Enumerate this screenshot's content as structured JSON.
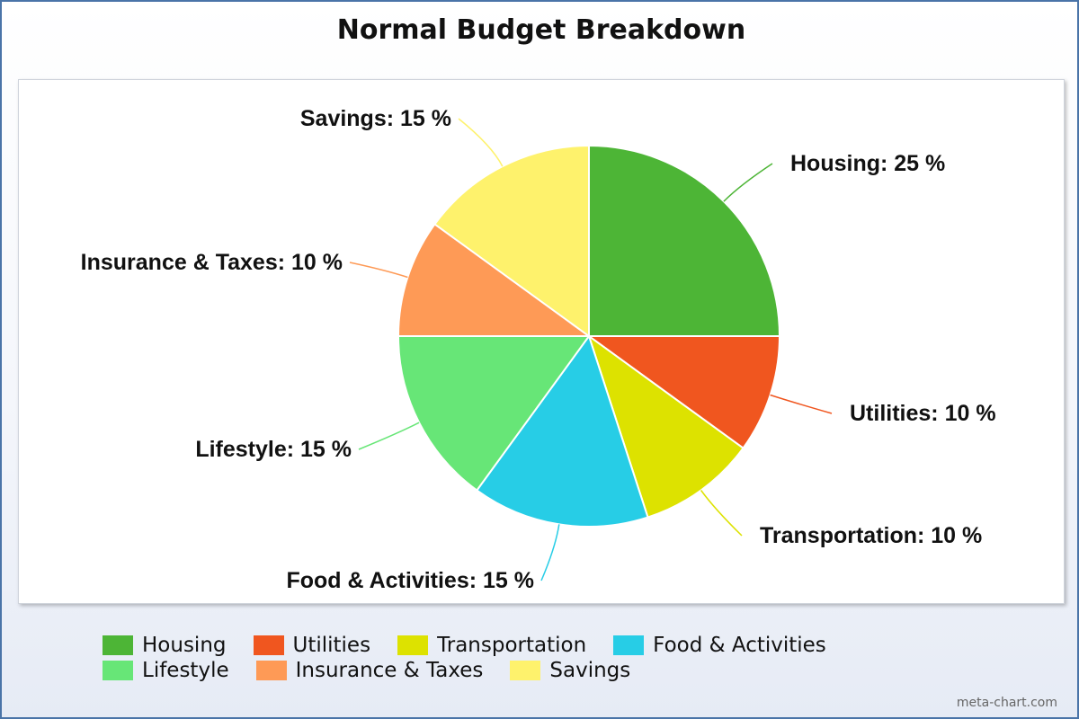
{
  "chart_data": {
    "type": "pie",
    "title": "Normal Budget Breakdown",
    "slices": [
      {
        "name": "Housing",
        "value": 25,
        "label": "Housing: 25 %",
        "color": "#4db536"
      },
      {
        "name": "Utilities",
        "value": 10,
        "label": "Utilities: 10 %",
        "color": "#f0561f"
      },
      {
        "name": "Transportation",
        "value": 10,
        "label": "Transportation: 10 %",
        "color": "#dde200"
      },
      {
        "name": "Food & Activities",
        "value": 15,
        "label": "Food & Activities: 15 %",
        "color": "#27cde6"
      },
      {
        "name": "Lifestyle",
        "value": 15,
        "label": "Lifestyle: 15 %",
        "color": "#67e677"
      },
      {
        "name": "Insurance & Taxes",
        "value": 10,
        "label": "Insurance & Taxes: 10 %",
        "color": "#fe9a56"
      },
      {
        "name": "Savings",
        "value": 15,
        "label": "Savings: 15 %",
        "color": "#fef26c"
      }
    ],
    "legend": "bottom"
  },
  "watermark": "meta-chart.com"
}
